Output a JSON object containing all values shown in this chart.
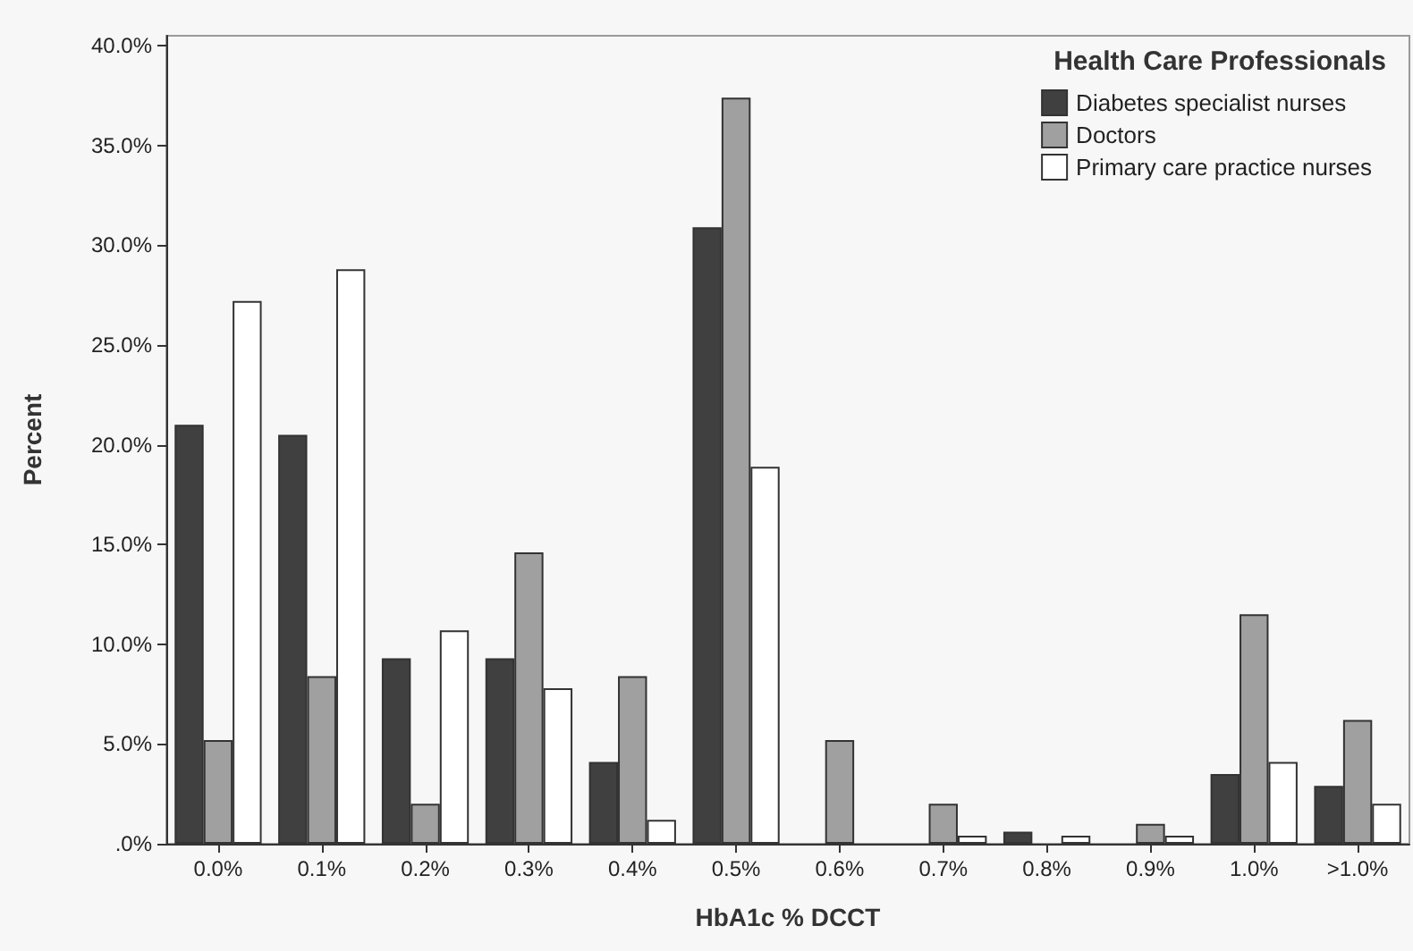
{
  "chart_data": {
    "type": "bar",
    "xlabel": "HbA1c % DCCT",
    "ylabel": "Percent",
    "legend_title": "Health Care Professionals",
    "legend": "top right",
    "grid": false,
    "categories": [
      "0.0%",
      "0.1%",
      "0.2%",
      "0.3%",
      "0.4%",
      "0.5%",
      "0.6%",
      "0.7%",
      "0.8%",
      "0.9%",
      "1.0%",
      ">1.0%"
    ],
    "series": [
      {
        "name": "Diabetes specialist nurses",
        "color": "#404040",
        "values": [
          21.0,
          20.5,
          9.3,
          9.3,
          4.1,
          30.9,
          null,
          null,
          0.6,
          null,
          3.5,
          2.9
        ]
      },
      {
        "name": "Doctors",
        "color": "#a0a0a0",
        "values": [
          5.2,
          8.4,
          2.0,
          14.6,
          8.4,
          37.4,
          5.2,
          2.0,
          null,
          1.0,
          11.5,
          6.2
        ]
      },
      {
        "name": "Primary care practice nurses",
        "color": "#ffffff",
        "values": [
          27.2,
          28.8,
          10.7,
          7.8,
          1.2,
          18.9,
          null,
          0.4,
          0.4,
          0.4,
          4.1,
          2.0
        ]
      }
    ],
    "ylim": [
      0,
      40.5
    ],
    "yticks": [
      {
        "value": 0,
        "label": ".0%"
      },
      {
        "value": 5,
        "label": "5.0%"
      },
      {
        "value": 10,
        "label": "10.0%"
      },
      {
        "value": 15,
        "label": "15.0%"
      },
      {
        "value": 20,
        "label": "20.0%"
      },
      {
        "value": 25,
        "label": "25.0%"
      },
      {
        "value": 30,
        "label": "30.0%"
      },
      {
        "value": 35,
        "label": "35.0%"
      },
      {
        "value": 40,
        "label": "40.0%"
      }
    ]
  }
}
